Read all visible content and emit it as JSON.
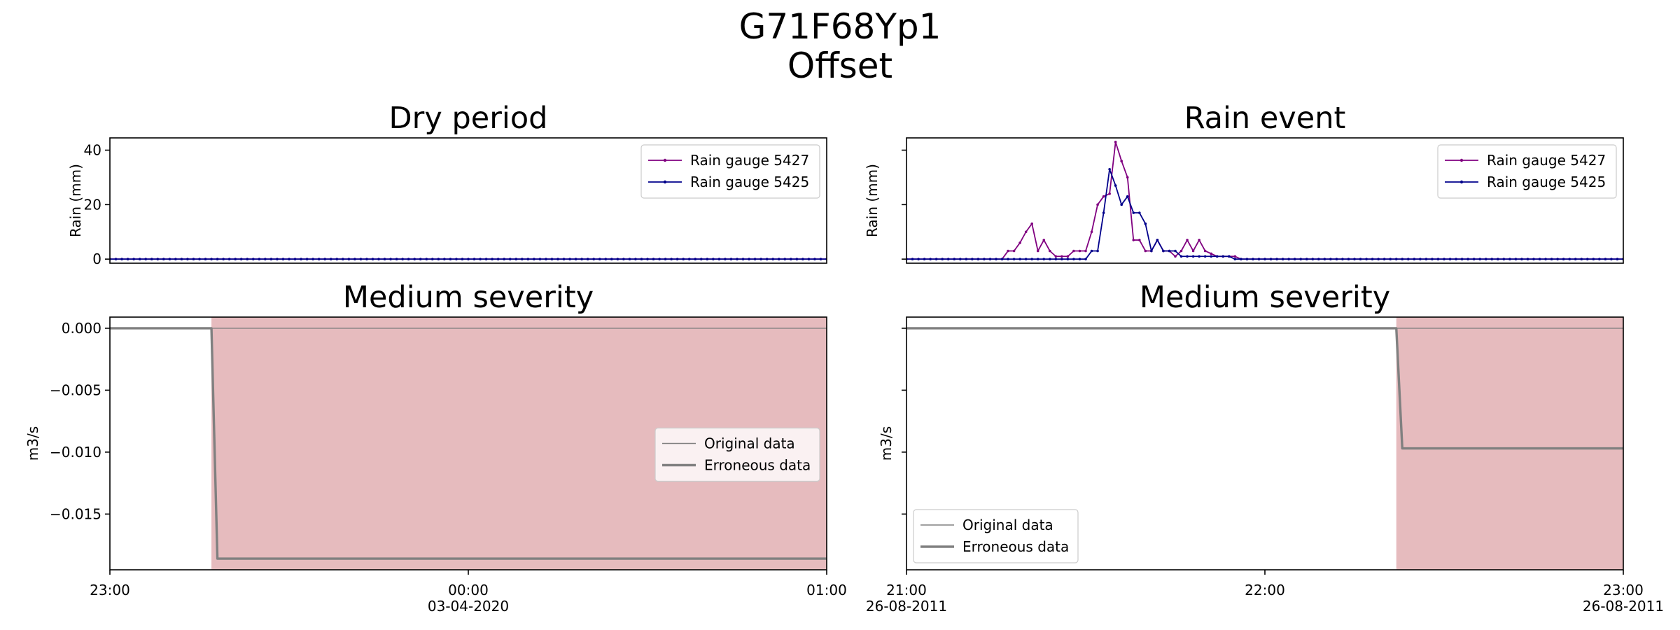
{
  "suptitle": [
    "G71F68Yp1",
    "Offset"
  ],
  "colors": {
    "gauge_5427": "#800080",
    "gauge_5425": "#00008b",
    "original": "#808080",
    "erroneous": "#808080",
    "shade": "#e6bbbe",
    "axis": "#000000"
  },
  "chart_data": [
    {
      "id": "dry-rain",
      "type": "line",
      "title": "Dry period",
      "xlabel": "",
      "ylabel": "Rain (mm)",
      "ylim": [
        -1.5,
        44.5
      ],
      "yticks": [
        0,
        20,
        40
      ],
      "show_ytick_labels": true,
      "x_range": [
        0,
        120
      ],
      "xticks": [],
      "legend": "top-right",
      "series": [
        {
          "name": "Rain gauge 5427",
          "color_key": "gauge_5427",
          "marker": true,
          "constant": 0,
          "count": 121
        },
        {
          "name": "Rain gauge 5425",
          "color_key": "gauge_5425",
          "marker": true,
          "constant": 0,
          "count": 121
        }
      ]
    },
    {
      "id": "event-rain",
      "type": "line",
      "title": "Rain event",
      "xlabel": "",
      "ylabel": "Rain (mm)",
      "ylim": [
        -1.5,
        44.5
      ],
      "yticks": [
        0,
        20,
        40
      ],
      "show_ytick_labels": false,
      "x_range": [
        0,
        120
      ],
      "xticks": [],
      "legend": "top-right",
      "series": [
        {
          "name": "Rain gauge 5427",
          "color_key": "gauge_5427",
          "marker": true,
          "values": [
            0,
            0,
            0,
            0,
            0,
            0,
            0,
            0,
            0,
            0,
            0,
            0,
            0,
            0,
            0,
            0,
            0,
            3,
            3,
            6,
            10,
            13,
            3,
            7,
            3,
            1,
            1,
            1,
            3,
            3,
            3,
            10,
            20,
            23,
            24,
            43,
            36,
            30,
            7,
            7,
            3,
            3,
            7,
            3,
            3,
            1,
            3,
            7,
            3,
            7,
            3,
            2,
            1,
            1,
            1,
            1,
            0,
            0,
            0,
            0,
            0,
            0,
            0,
            0,
            0,
            0,
            0,
            0,
            0,
            0,
            0,
            0,
            0,
            0,
            0,
            0,
            0,
            0,
            0,
            0,
            0,
            0,
            0,
            0,
            0,
            0,
            0,
            0,
            0,
            0,
            0,
            0,
            0,
            0,
            0,
            0,
            0,
            0,
            0,
            0,
            0,
            0,
            0,
            0,
            0,
            0,
            0,
            0,
            0,
            0,
            0,
            0,
            0,
            0,
            0,
            0,
            0,
            0,
            0,
            0,
            0
          ]
        },
        {
          "name": "Rain gauge 5425",
          "color_key": "gauge_5425",
          "marker": true,
          "values": [
            0,
            0,
            0,
            0,
            0,
            0,
            0,
            0,
            0,
            0,
            0,
            0,
            0,
            0,
            0,
            0,
            0,
            0,
            0,
            0,
            0,
            0,
            0,
            0,
            0,
            0,
            0,
            0,
            0,
            0,
            0,
            3,
            3,
            17,
            33,
            27,
            20,
            23,
            17,
            17,
            13,
            3,
            7,
            3,
            3,
            3,
            1,
            1,
            1,
            1,
            1,
            1,
            1,
            1,
            1,
            0,
            0,
            0,
            0,
            0,
            0,
            0,
            0,
            0,
            0,
            0,
            0,
            0,
            0,
            0,
            0,
            0,
            0,
            0,
            0,
            0,
            0,
            0,
            0,
            0,
            0,
            0,
            0,
            0,
            0,
            0,
            0,
            0,
            0,
            0,
            0,
            0,
            0,
            0,
            0,
            0,
            0,
            0,
            0,
            0,
            0,
            0,
            0,
            0,
            0,
            0,
            0,
            0,
            0,
            0,
            0,
            0,
            0,
            0,
            0,
            0,
            0,
            0,
            0,
            0,
            0
          ]
        }
      ]
    },
    {
      "id": "dry-flow",
      "type": "line",
      "title": "Medium severity",
      "xlabel": "",
      "ylabel": "m3/s",
      "ylim": [
        -0.0195,
        0.0009
      ],
      "yticks": [
        0.0,
        -0.005,
        -0.01,
        -0.015
      ],
      "ytick_labels": [
        "0.000",
        "−0.005",
        "−0.010",
        "−0.015"
      ],
      "show_ytick_labels": true,
      "x_range": [
        0,
        120
      ],
      "xticks": [
        {
          "x": 0,
          "label": "23:00",
          "sub": ""
        },
        {
          "x": 60,
          "label": "00:00",
          "sub": "03-04-2020"
        },
        {
          "x": 120,
          "label": "01:00",
          "sub": ""
        }
      ],
      "legend": "center-right",
      "shaded_span": [
        17,
        120
      ],
      "series": [
        {
          "name": "Original data",
          "color_key": "original",
          "width": 1.4,
          "points": [
            [
              0,
              0.0
            ],
            [
              120,
              0.0
            ]
          ]
        },
        {
          "name": "Erroneous data",
          "color_key": "erroneous",
          "width": 3.4,
          "points": [
            [
              0,
              0.0
            ],
            [
              17,
              0.0
            ],
            [
              18,
              -0.0186
            ],
            [
              120,
              -0.0186
            ]
          ]
        }
      ]
    },
    {
      "id": "event-flow",
      "type": "line",
      "title": "Medium severity",
      "xlabel": "",
      "ylabel": "m3/s",
      "ylim": [
        -0.0195,
        0.0009
      ],
      "yticks": [
        0.0,
        -0.005,
        -0.01,
        -0.015
      ],
      "show_ytick_labels": false,
      "x_range": [
        0,
        120
      ],
      "xticks": [
        {
          "x": 0,
          "label": "21:00",
          "sub": "26-08-2011"
        },
        {
          "x": 60,
          "label": "22:00",
          "sub": ""
        },
        {
          "x": 120,
          "label": "23:00",
          "sub": "26-08-2011"
        }
      ],
      "legend": "bottom-left",
      "shaded_span": [
        82,
        120
      ],
      "series": [
        {
          "name": "Original data",
          "color_key": "original",
          "width": 1.4,
          "points": [
            [
              0,
              0.0
            ],
            [
              120,
              0.0
            ]
          ]
        },
        {
          "name": "Erroneous data",
          "color_key": "erroneous",
          "width": 3.4,
          "points": [
            [
              0,
              0.0
            ],
            [
              82,
              0.0
            ],
            [
              83,
              -0.0097
            ],
            [
              120,
              -0.0097
            ]
          ]
        }
      ]
    }
  ]
}
